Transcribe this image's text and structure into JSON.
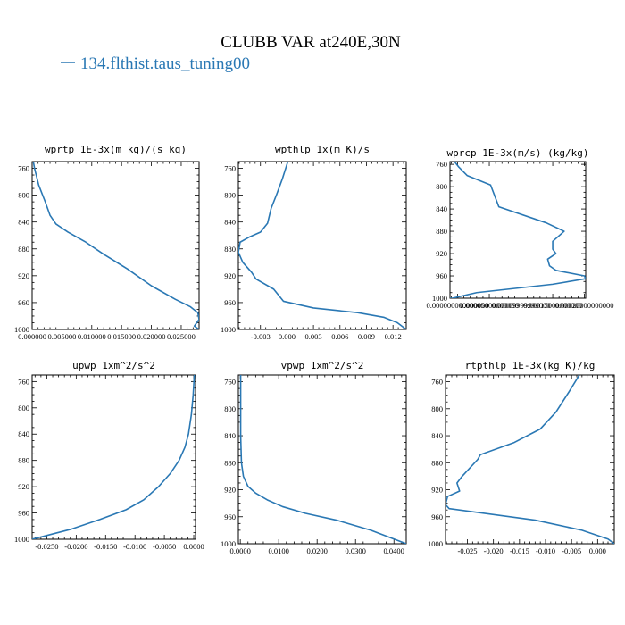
{
  "title": "CLUBB VAR at240E,30N",
  "legend": {
    "label": "134.flthist.taus_tuning00",
    "color": "#2a78b4"
  },
  "chart_data": [
    {
      "type": "line",
      "title": "wprtp  1E-3x(m kg)/(s kg)",
      "y_axis": {
        "range": [
          1000,
          750
        ],
        "ticks": [
          1000,
          960,
          920,
          880,
          840,
          800,
          760
        ]
      },
      "x_axis": {
        "range": [
          0,
          0.028
        ],
        "ticks": [
          0,
          0.005,
          0.01,
          0.015,
          0.02,
          0.025
        ],
        "tick_labels": [
          "0.000000",
          "0.005000",
          "0.010000",
          "0.015000",
          "0.020000",
          "0.025000"
        ]
      },
      "series": [
        {
          "color": "#2a78b4",
          "x": [
            0.0002,
            0.0004,
            0.0011,
            0.0022,
            0.003,
            0.004,
            0.006,
            0.009,
            0.012,
            0.016,
            0.02,
            0.024,
            0.0265,
            0.0278,
            0.028,
            0.0276,
            0.0272,
            0.028
          ],
          "y": [
            750,
            760,
            785,
            810,
            830,
            843,
            855,
            870,
            888,
            910,
            935,
            955,
            966,
            975,
            985,
            990,
            995,
            1000
          ]
        }
      ]
    },
    {
      "type": "line",
      "title": "wpthlp  1x(m K)/s",
      "y_axis": {
        "range": [
          1000,
          750
        ],
        "ticks": [
          1000,
          960,
          920,
          880,
          840,
          800,
          760
        ]
      },
      "x_axis": {
        "range": [
          -0.0055,
          0.0135
        ],
        "ticks": [
          -0.003,
          0,
          0.003,
          0.006,
          0.009,
          0.012
        ],
        "tick_labels": [
          "-0.003",
          "0.000",
          "0.003",
          "0.006",
          "0.009",
          "0.012"
        ]
      },
      "series": [
        {
          "color": "#2a78b4",
          "x": [
            0.0001,
            -0.0005,
            -0.0012,
            -0.0018,
            -0.0022,
            -0.003,
            -0.0042,
            -0.0053,
            -0.0055,
            -0.005,
            -0.004,
            -0.0035,
            -0.0015,
            -0.0004,
            0.003,
            0.008,
            0.011,
            0.0125,
            0.0135
          ],
          "y": [
            750,
            775,
            800,
            820,
            842,
            855,
            862,
            870,
            885,
            900,
            915,
            925,
            940,
            958,
            968,
            975,
            982,
            990,
            1000
          ]
        }
      ]
    },
    {
      "type": "line",
      "title": "wprcp  1E-3x(m/s) (kg/kg)",
      "y_axis": {
        "range": [
          1000,
          755
        ],
        "ticks": [
          1000,
          960,
          920,
          880,
          840,
          800,
          760
        ]
      },
      "x_axis": {
        "range": [
          -1.2e-05,
          0.000202
        ],
        "ticks": [
          0,
          5e-05,
          0.0001,
          0.00015,
          0.0002
        ],
        "tick_labels": [
          "0.000000000000000",
          "0.00005000000000",
          "0.00009999999000",
          "0.00015000000000",
          "0.00020000000000"
        ]
      },
      "series": [
        {
          "color": "#2a78b4",
          "x": [
            -5e-06,
            2e-06,
            1.5e-05,
            5.2e-05,
            6.5e-05,
            0.00014,
            0.000168,
            0.00015,
            0.00015,
            0.000155,
            0.000142,
            0.000145,
            0.000155,
            0.0002,
            0.000202,
            0.00015,
            3e-05,
            -8e-06,
            -1.2e-05
          ],
          "y": [
            755,
            765,
            780,
            797,
            836,
            865,
            880,
            898,
            912,
            920,
            930,
            942,
            950,
            960,
            965,
            975,
            990,
            1000,
            1000
          ]
        }
      ]
    },
    {
      "type": "line",
      "title": "upwp  1xm^2/s^2",
      "y_axis": {
        "range": [
          1000,
          750
        ],
        "ticks": [
          1000,
          960,
          920,
          880,
          840,
          800,
          760
        ]
      },
      "x_axis": {
        "range": [
          -0.0275,
          0.0003
        ],
        "ticks": [
          -0.025,
          -0.02,
          -0.015,
          -0.01,
          -0.005,
          0
        ],
        "tick_labels": [
          "-0.0250",
          "-0.0200",
          "-0.0150",
          "-0.0100",
          "-0.0050",
          "0.0000"
        ]
      },
      "series": [
        {
          "color": "#2a78b4",
          "x": [
            0.0001,
            -0.0001,
            -0.0004,
            -0.0009,
            -0.0015,
            -0.0025,
            -0.004,
            -0.006,
            -0.0085,
            -0.0115,
            -0.016,
            -0.021,
            -0.0275
          ],
          "y": [
            750,
            780,
            810,
            840,
            860,
            880,
            900,
            920,
            940,
            955,
            970,
            985,
            1000
          ]
        }
      ]
    },
    {
      "type": "line",
      "title": "vpwp  1xm^2/s^2",
      "y_axis": {
        "range": [
          1000,
          750
        ],
        "ticks": [
          1000,
          960,
          920,
          880,
          840,
          800,
          760
        ]
      },
      "x_axis": {
        "range": [
          -0.0005,
          0.0432
        ],
        "ticks": [
          0,
          0.01,
          0.02,
          0.03,
          0.04
        ],
        "tick_labels": [
          "0.0000",
          "0.0100",
          "0.0200",
          "0.0300",
          "0.0400"
        ]
      },
      "series": [
        {
          "color": "#2a78b4",
          "x": [
            0.0001,
            0.0001,
            0.0003,
            0.0008,
            0.002,
            0.004,
            0.007,
            0.011,
            0.017,
            0.025,
            0.034,
            0.0432
          ],
          "y": [
            750,
            840,
            880,
            900,
            915,
            925,
            935,
            945,
            955,
            965,
            980,
            1000
          ]
        }
      ]
    },
    {
      "type": "line",
      "title": "rtpthlp  1E-3x(kg K)/kg",
      "y_axis": {
        "range": [
          1000,
          750
        ],
        "ticks": [
          1000,
          960,
          920,
          880,
          840,
          800,
          760
        ]
      },
      "x_axis": {
        "range": [
          -0.0292,
          0.0032
        ],
        "ticks": [
          -0.025,
          -0.02,
          -0.015,
          -0.01,
          -0.005,
          0
        ],
        "tick_labels": [
          "-0.025",
          "-0.020",
          "-0.015",
          "-0.010",
          "-0.005",
          "0.000"
        ]
      },
      "series": [
        {
          "color": "#2a78b4",
          "x": [
            -0.0035,
            -0.0055,
            -0.008,
            -0.011,
            -0.016,
            -0.0225,
            -0.023,
            -0.026,
            -0.027,
            -0.0265,
            -0.0288,
            -0.0292,
            -0.0285,
            -0.012,
            -0.003,
            0.002,
            0.0032
          ],
          "y": [
            750,
            775,
            805,
            830,
            850,
            868,
            875,
            900,
            910,
            922,
            930,
            942,
            948,
            965,
            980,
            993,
            1000
          ]
        }
      ]
    }
  ]
}
